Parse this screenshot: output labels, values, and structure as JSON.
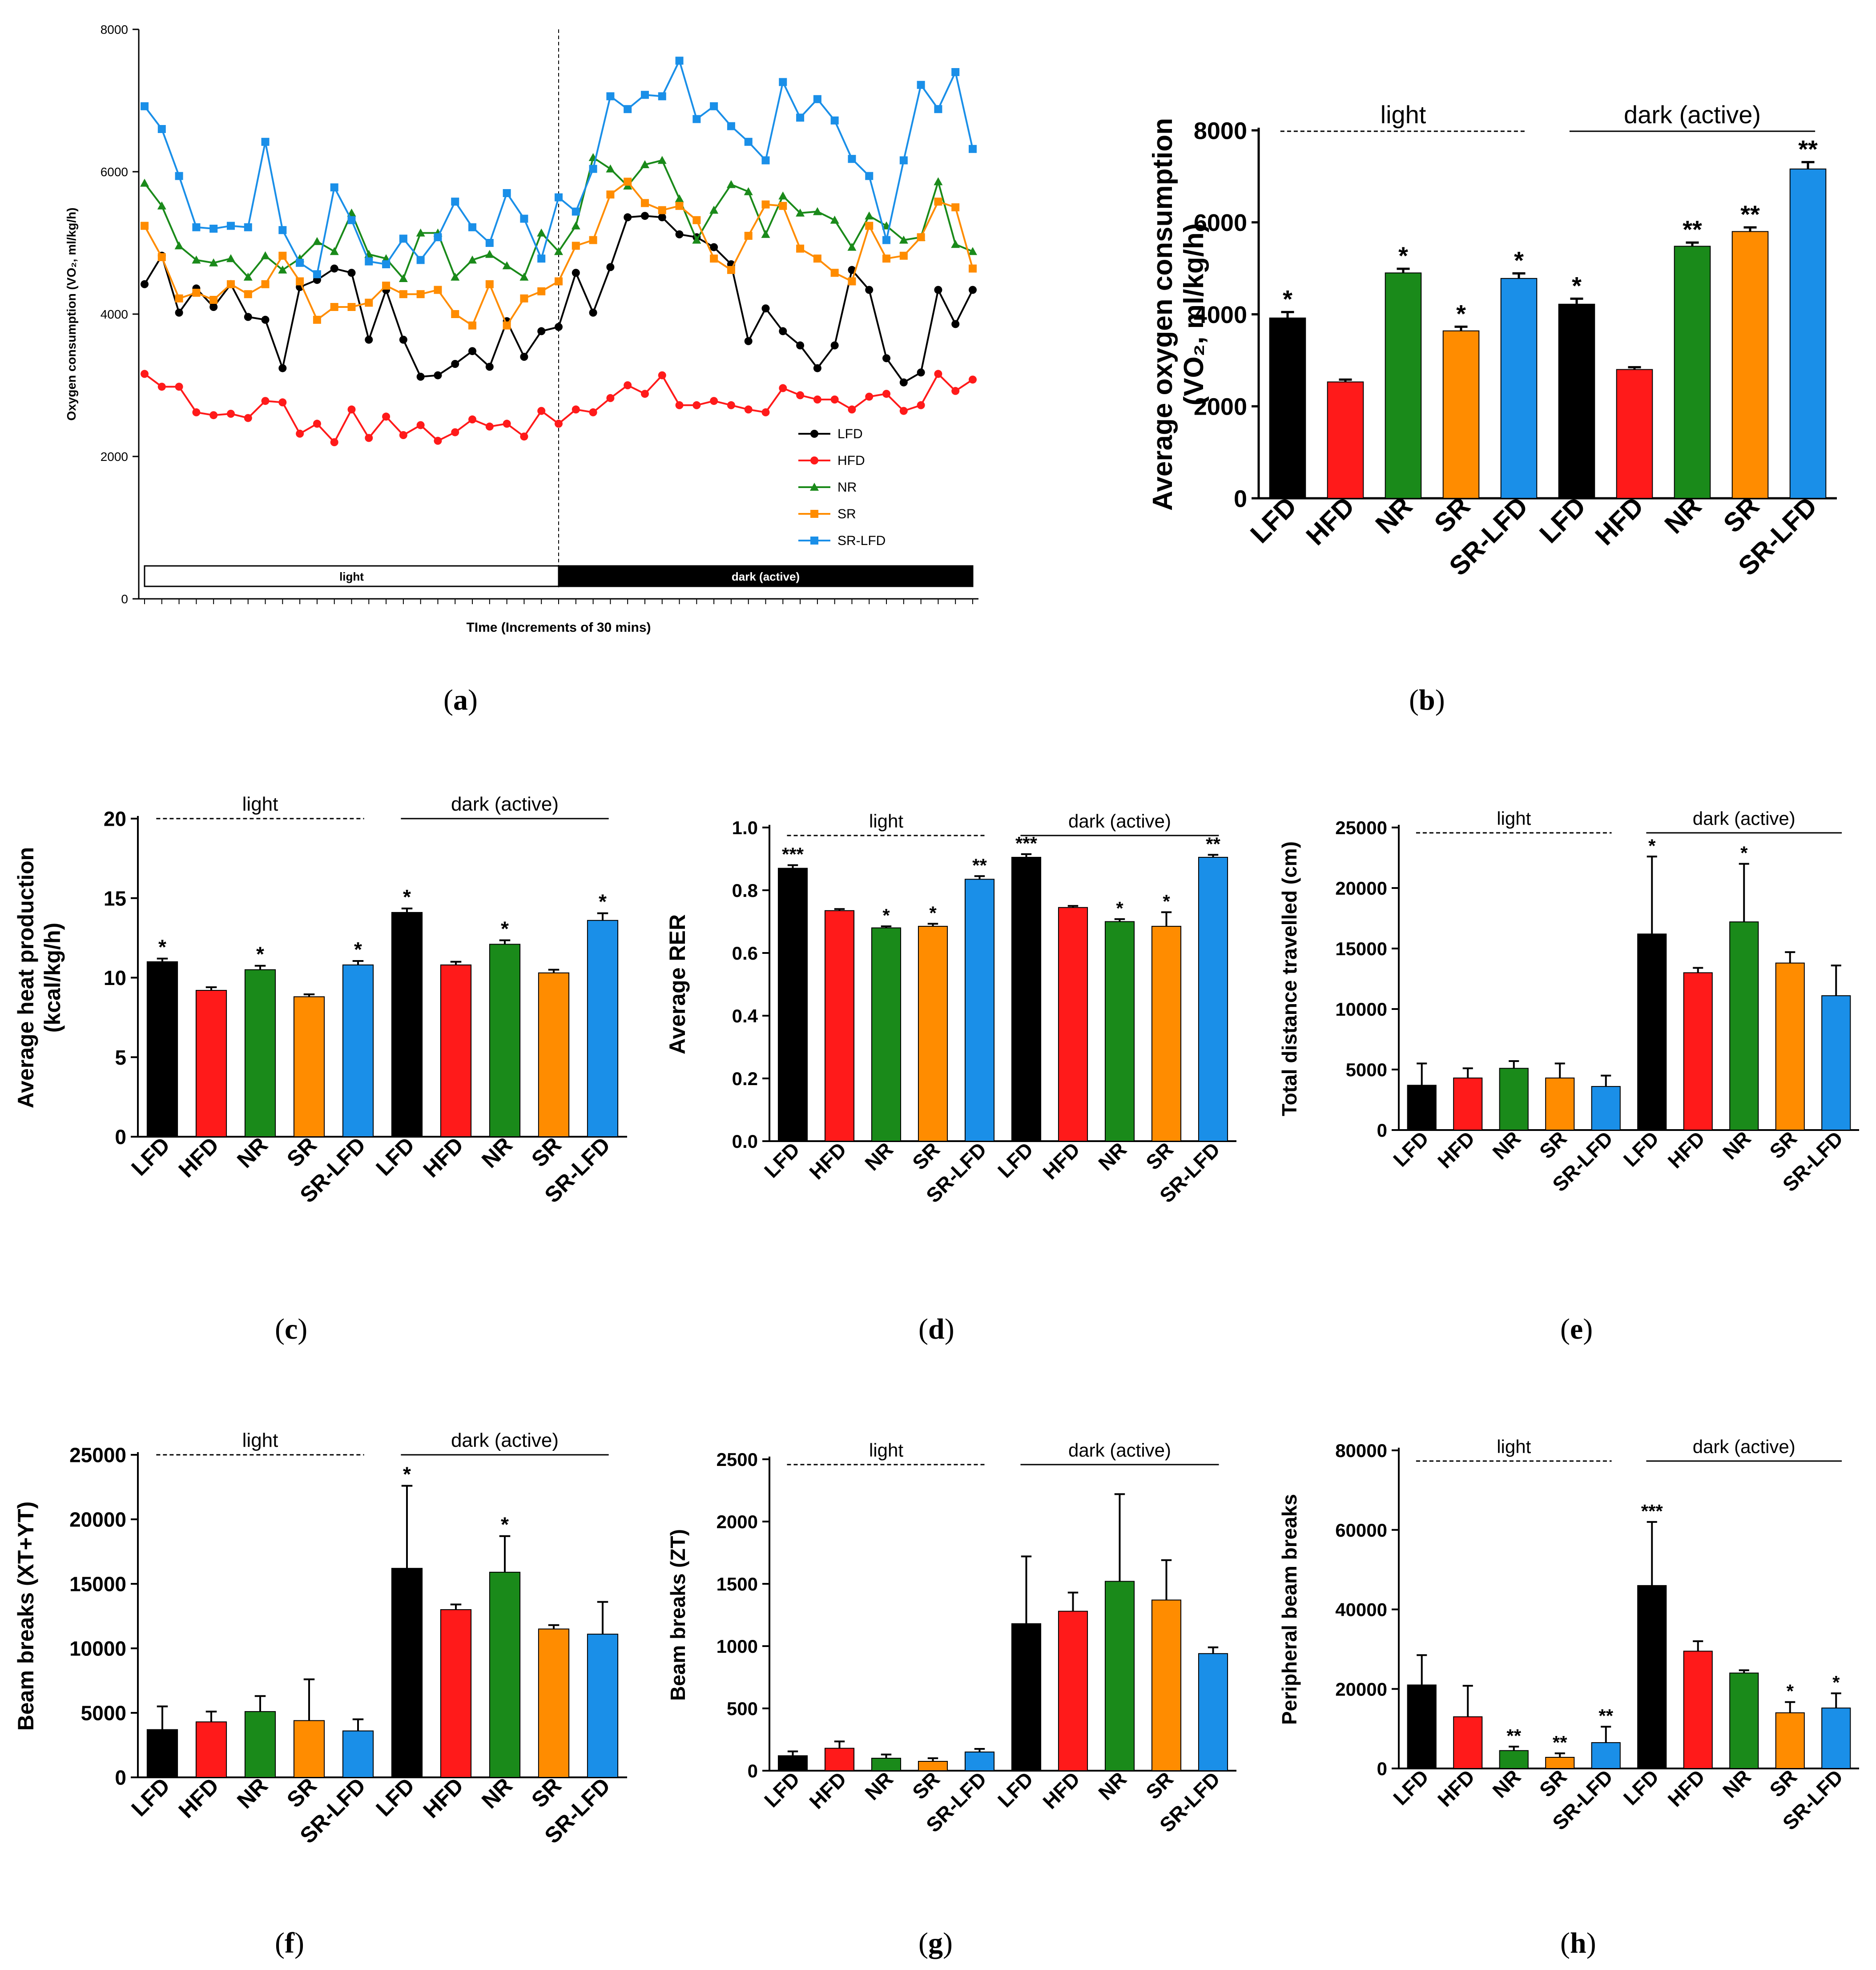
{
  "colors": {
    "LFD": "#000000",
    "HFD": "#ff1a1a",
    "NR": "#1a8a1a",
    "SR": "#ff8c00",
    "SR-LFD": "#1a8fe8"
  },
  "chart_data": [
    {
      "id": "a",
      "type": "line",
      "caption": {
        "open": "(",
        "letter": "a",
        "close": ")"
      },
      "xlabel": "TIme (Increments of 30 mins)",
      "ylabel": "Oxygen consumption (VO₂, ml/kg/h)",
      "ylim": [
        0,
        8000
      ],
      "yticks": [
        "0",
        "2000",
        "4000",
        "6000",
        "8000"
      ],
      "x_count": 48,
      "light_dark_split_index": 24,
      "bar_labels": {
        "light": "light",
        "dark": "dark (active)"
      },
      "series": [
        {
          "name": "LFD",
          "marker": "circle",
          "values": [
            4420,
            4820,
            4020,
            4360,
            4100,
            4420,
            3960,
            3920,
            3240,
            4380,
            4480,
            4640,
            4580,
            3640,
            4340,
            3640,
            3120,
            3140,
            3300,
            3480,
            3260,
            3900,
            3400,
            3760,
            3820,
            4580,
            4020,
            4660,
            5360,
            5380,
            5360,
            5120,
            5080,
            4940,
            4700,
            3620,
            4080,
            3760,
            3560,
            3240,
            3560,
            4620,
            4340,
            3380,
            3040,
            3180,
            4340,
            3860,
            4340
          ]
        },
        {
          "name": "HFD",
          "marker": "circle",
          "values": [
            3160,
            2980,
            2980,
            2620,
            2580,
            2600,
            2540,
            2780,
            2760,
            2320,
            2460,
            2200,
            2660,
            2260,
            2560,
            2300,
            2440,
            2220,
            2340,
            2520,
            2420,
            2460,
            2280,
            2640,
            2460,
            2660,
            2620,
            2820,
            3000,
            2880,
            3140,
            2720,
            2720,
            2780,
            2720,
            2660,
            2620,
            2960,
            2860,
            2800,
            2800,
            2660,
            2840,
            2880,
            2640,
            2720,
            3160,
            2920,
            3080
          ]
        },
        {
          "name": "NR",
          "marker": "triangle",
          "values": [
            5840,
            5520,
            4960,
            4760,
            4720,
            4780,
            4520,
            4820,
            4620,
            4780,
            5020,
            4880,
            5420,
            4840,
            4780,
            4500,
            5140,
            5140,
            4520,
            4760,
            4840,
            4680,
            4520,
            5140,
            4880,
            5240,
            6200,
            6040,
            5800,
            6100,
            6160,
            5620,
            5040,
            5460,
            5820,
            5720,
            5120,
            5660,
            5420,
            5440,
            5320,
            4940,
            5380,
            5240,
            5040,
            5080,
            5860,
            4980,
            4880
          ]
        },
        {
          "name": "SR",
          "marker": "square",
          "values": [
            5240,
            4800,
            4220,
            4300,
            4200,
            4420,
            4280,
            4420,
            4820,
            4460,
            3920,
            4100,
            4100,
            4160,
            4400,
            4280,
            4280,
            4340,
            4000,
            3840,
            4420,
            3840,
            4220,
            4320,
            4460,
            4960,
            5040,
            5680,
            5860,
            5560,
            5460,
            5520,
            5320,
            4780,
            4620,
            5100,
            5540,
            5520,
            4920,
            4780,
            4580,
            4460,
            5240,
            4780,
            4820,
            5080,
            5580,
            5500,
            4640
          ]
        },
        {
          "name": "SR-LFD",
          "marker": "square",
          "values": [
            6920,
            6600,
            5940,
            5220,
            5200,
            5240,
            5220,
            6420,
            5180,
            4720,
            4560,
            5780,
            5320,
            4740,
            4700,
            5060,
            4760,
            5080,
            5580,
            5220,
            5000,
            5700,
            5340,
            4780,
            5640,
            5440,
            6040,
            7060,
            6880,
            7080,
            7060,
            7560,
            6740,
            6920,
            6640,
            6420,
            6160,
            7260,
            6760,
            7020,
            6720,
            6180,
            5940,
            5040,
            6160,
            7220,
            6880,
            7400,
            6320
          ]
        }
      ]
    },
    {
      "id": "b",
      "type": "bar",
      "caption": {
        "open": "(",
        "letter": "b",
        "close": ")"
      },
      "ylabel_line1": "Average oxygen consumption",
      "ylabel_line2": "(VO₂, ml/kg/h)",
      "ylim": [
        0,
        8000
      ],
      "yticks": [
        "0",
        "2000",
        "4000",
        "6000",
        "8000"
      ],
      "categories": [
        "LFD",
        "HFD",
        "NR",
        "SR",
        "SR-LFD",
        "LFD",
        "HFD",
        "NR",
        "SR",
        "SR-LFD"
      ],
      "values": [
        3920,
        2530,
        4900,
        3640,
        4780,
        4220,
        2800,
        5480,
        5800,
        7160
      ],
      "errors": [
        130,
        50,
        90,
        90,
        110,
        120,
        50,
        80,
        90,
        150
      ],
      "significance": [
        "*",
        "",
        "*",
        "*",
        "*",
        "*",
        "",
        "**",
        "**",
        "**"
      ],
      "group_labels": {
        "light": "light",
        "dark": "dark (active)"
      }
    },
    {
      "id": "c",
      "type": "bar",
      "caption": {
        "open": "(",
        "letter": "c",
        "close": ")"
      },
      "ylabel_line1": "Average heat production",
      "ylabel_line2": "(kcal/kg/h)",
      "ylim": [
        0,
        20
      ],
      "yticks": [
        "0",
        "5",
        "10",
        "15",
        "20"
      ],
      "categories": [
        "LFD",
        "HFD",
        "NR",
        "SR",
        "SR-LFD",
        "LFD",
        "HFD",
        "NR",
        "SR",
        "SR-LFD"
      ],
      "values": [
        11.0,
        9.2,
        10.5,
        8.8,
        10.8,
        14.1,
        10.8,
        12.1,
        10.3,
        13.6
      ],
      "errors": [
        0.2,
        0.2,
        0.25,
        0.15,
        0.25,
        0.25,
        0.2,
        0.25,
        0.2,
        0.45
      ],
      "significance": [
        "*",
        "",
        "*",
        "",
        "*",
        "*",
        "",
        "*",
        "",
        "*"
      ],
      "group_labels": {
        "light": "light",
        "dark": "dark (active)"
      }
    },
    {
      "id": "d",
      "type": "bar",
      "caption": {
        "open": "(",
        "letter": "d",
        "close": ")"
      },
      "ylabel_line1": "Average RER",
      "ylabel_line2": "",
      "ylim": [
        0,
        1.0
      ],
      "yticks": [
        "0.0",
        "0.2",
        "0.4",
        "0.6",
        "0.8",
        "1.0"
      ],
      "categories": [
        "LFD",
        "HFD",
        "NR",
        "SR",
        "SR-LFD",
        "LFD",
        "HFD",
        "NR",
        "SR",
        "SR-LFD"
      ],
      "values": [
        0.87,
        0.735,
        0.68,
        0.685,
        0.835,
        0.905,
        0.745,
        0.7,
        0.685,
        0.905
      ],
      "errors": [
        0.01,
        0.005,
        0.005,
        0.008,
        0.01,
        0.01,
        0.005,
        0.008,
        0.045,
        0.008
      ],
      "significance": [
        "***",
        "",
        "*",
        "*",
        "**",
        "***",
        "",
        "*",
        "*",
        "**"
      ],
      "group_labels": {
        "light": "light",
        "dark": "dark (active)"
      }
    },
    {
      "id": "e",
      "type": "bar",
      "caption": {
        "open": "(",
        "letter": "e",
        "close": ")"
      },
      "ylabel_line1": "Total distance travelled  (cm)",
      "ylabel_line2": "",
      "ylim": [
        0,
        25000
      ],
      "yticks": [
        "0",
        "5000",
        "10000",
        "15000",
        "20000",
        "25000"
      ],
      "categories": [
        "LFD",
        "HFD",
        "NR",
        "SR",
        "SR-LFD",
        "LFD",
        "HFD",
        "NR",
        "SR",
        "SR-LFD"
      ],
      "values": [
        3700,
        4300,
        5100,
        4300,
        3600,
        16200,
        13000,
        17200,
        13800,
        11100
      ],
      "errors": [
        1800,
        800,
        600,
        1200,
        900,
        6400,
        400,
        4800,
        900,
        2500
      ],
      "significance": [
        "",
        "",
        "",
        "",
        "",
        "*",
        "",
        "*",
        "",
        ""
      ],
      "group_labels": {
        "light": "light",
        "dark": "dark (active)"
      }
    },
    {
      "id": "f",
      "type": "bar",
      "caption": {
        "open": "(",
        "letter": "f",
        "close": ")"
      },
      "ylabel_line1": "Beam breaks (XT+YT)",
      "ylabel_line2": "",
      "ylim": [
        0,
        25000
      ],
      "yticks": [
        "0",
        "5000",
        "10000",
        "15000",
        "20000",
        "25000"
      ],
      "categories": [
        "LFD",
        "HFD",
        "NR",
        "SR",
        "SR-LFD",
        "LFD",
        "HFD",
        "NR",
        "SR",
        "SR-LFD"
      ],
      "values": [
        3700,
        4300,
        5100,
        4400,
        3600,
        16200,
        13000,
        15900,
        11500,
        11100
      ],
      "errors": [
        1800,
        800,
        1200,
        3200,
        900,
        6400,
        400,
        2800,
        300,
        2500
      ],
      "significance": [
        "",
        "",
        "",
        "",
        "",
        "*",
        "",
        "*",
        "",
        ""
      ],
      "group_labels": {
        "light": "light",
        "dark": "dark (active)"
      }
    },
    {
      "id": "g",
      "type": "bar",
      "caption": {
        "open": "(",
        "letter": "g",
        "close": ")"
      },
      "ylabel_line1": "Beam breaks (ZT)",
      "ylabel_line2": "",
      "ylim": [
        0,
        2500
      ],
      "yticks": [
        "0",
        "500",
        "1000",
        "1500",
        "2000",
        "2500"
      ],
      "categories": [
        "LFD",
        "HFD",
        "NR",
        "SR",
        "SR-LFD",
        "LFD",
        "HFD",
        "NR",
        "SR",
        "SR-LFD"
      ],
      "values": [
        120,
        180,
        100,
        75,
        150,
        1180,
        1280,
        1520,
        1370,
        940
      ],
      "errors": [
        35,
        55,
        30,
        25,
        25,
        540,
        150,
        700,
        320,
        50
      ],
      "significance": [
        "",
        "",
        "",
        "",
        "",
        "",
        "",
        "",
        "",
        ""
      ],
      "group_labels": {
        "light": "light",
        "dark": "dark (active)"
      }
    },
    {
      "id": "h",
      "type": "bar",
      "caption": {
        "open": "(",
        "letter": "h",
        "close": ")"
      },
      "ylabel_line1": "Peripheral beam breaks",
      "ylabel_line2": "",
      "ylim": [
        0,
        80000
      ],
      "yticks": [
        "0",
        "20000",
        "40000",
        "60000",
        "80000"
      ],
      "categories": [
        "LFD",
        "HFD",
        "NR",
        "SR",
        "SR-LFD",
        "LFD",
        "HFD",
        "NR",
        "SR",
        "SR-LFD"
      ],
      "values": [
        21000,
        13000,
        4500,
        2800,
        6500,
        46000,
        29500,
        24000,
        14000,
        15200
      ],
      "errors": [
        7500,
        7800,
        1000,
        1000,
        4000,
        16000,
        2500,
        700,
        2700,
        3700
      ],
      "significance": [
        "",
        "",
        "**",
        "**",
        "**",
        "***",
        "",
        "",
        "*",
        "*"
      ],
      "group_labels": {
        "light": "light",
        "dark": "dark (active)"
      }
    }
  ]
}
